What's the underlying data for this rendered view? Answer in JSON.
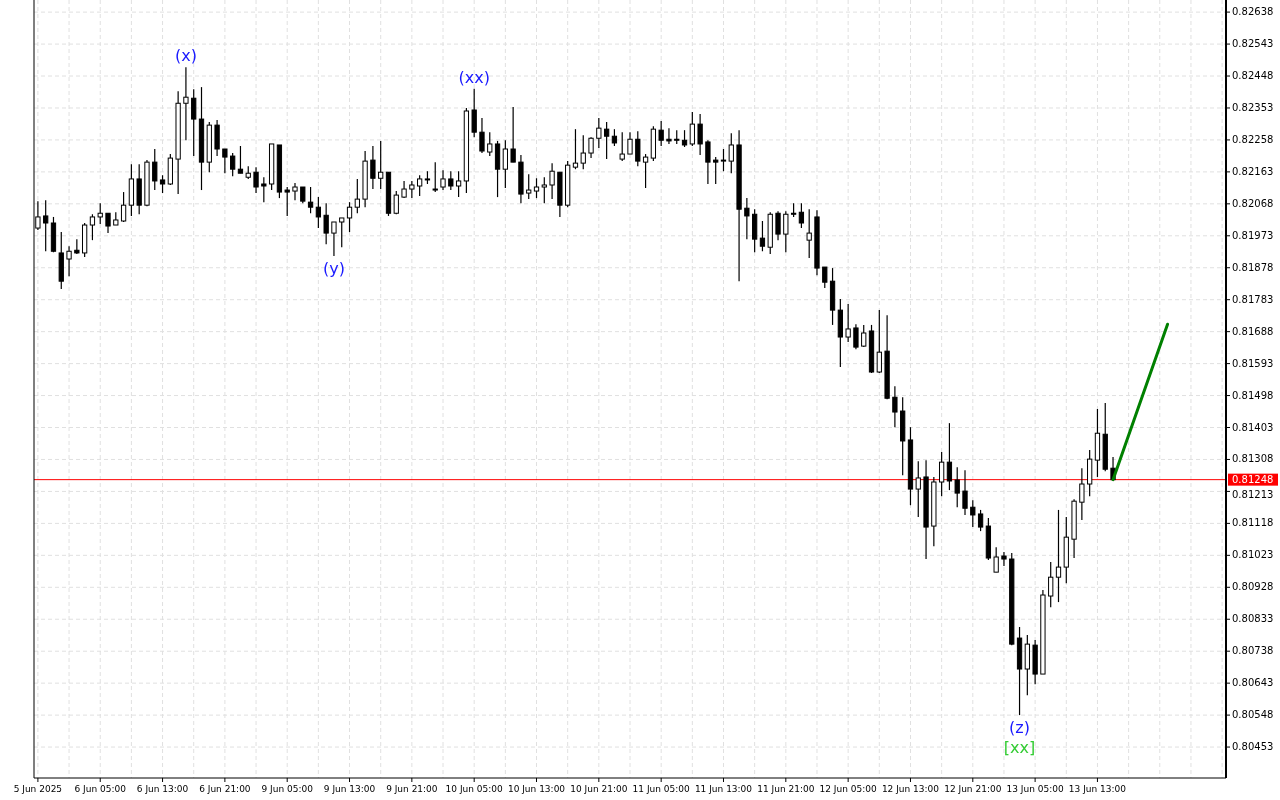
{
  "chart_data": {
    "type": "candlestick",
    "categories": [
      "5 Jun 2025",
      null,
      null,
      null,
      null,
      null,
      null,
      null,
      "6 Jun 05:00",
      null,
      null,
      null,
      null,
      null,
      null,
      null,
      "6 Jun 13:00",
      null,
      null,
      null,
      null,
      null,
      null,
      null,
      "6 Jun 21:00",
      null,
      null,
      null,
      null,
      null,
      null,
      null,
      "9 Jun 05:00",
      null,
      null,
      null,
      null,
      null,
      null,
      null,
      "9 Jun 13:00",
      null,
      null,
      null,
      null,
      null,
      null,
      null,
      "9 Jun 21:00",
      null,
      null,
      null,
      null,
      null,
      null,
      null,
      "10 Jun 05:00",
      null,
      null,
      null,
      null,
      null,
      null,
      null,
      "10 Jun 13:00",
      null,
      null,
      null,
      null,
      null,
      null,
      null,
      "10 Jun 21:00",
      null,
      null,
      null,
      null,
      null,
      null,
      null,
      "11 Jun 05:00",
      null,
      null,
      null,
      null,
      null,
      null,
      null,
      "11 Jun 13:00",
      null,
      null,
      null,
      null,
      null,
      null,
      null,
      "11 Jun 21:00",
      null,
      null,
      null,
      null,
      null,
      null,
      null,
      "12 Jun 05:00",
      null,
      null,
      null,
      null,
      null,
      null,
      null,
      "12 Jun 13:00",
      null,
      null,
      null,
      null,
      null,
      null,
      null,
      "12 Jun 21:00",
      null,
      null,
      null,
      null,
      null,
      null,
      null,
      "13 Jun 05:00",
      null,
      null,
      null,
      null,
      null,
      null,
      null,
      "13 Jun 13:00",
      null,
      null,
      null,
      null,
      null,
      null,
      null,
      null,
      null,
      null,
      null,
      null,
      null,
      null,
      null,
      null
    ],
    "ohlc": [
      [
        0.81996,
        0.82076,
        0.8199,
        0.82029
      ],
      [
        0.82032,
        0.82079,
        0.81927,
        0.82011
      ],
      [
        0.82011,
        0.82029,
        0.81924,
        0.81927
      ],
      [
        0.81922,
        0.81984,
        0.81815,
        0.81838
      ],
      [
        0.81904,
        0.81942,
        0.81853,
        0.81927
      ],
      [
        0.8193,
        0.81963,
        0.81919,
        0.81922
      ],
      [
        0.81922,
        0.82011,
        0.8191,
        0.82005
      ],
      [
        0.82005,
        0.82037,
        0.8196,
        0.82029
      ],
      [
        0.82029,
        0.8207,
        0.82008,
        0.8204
      ],
      [
        0.8204,
        0.8204,
        0.81981,
        0.82002
      ],
      [
        0.82005,
        0.82043,
        0.82005,
        0.8202
      ],
      [
        0.82017,
        0.82103,
        0.82014,
        0.82064
      ],
      [
        0.82064,
        0.82186,
        0.82032,
        0.82142
      ],
      [
        0.82142,
        0.82186,
        0.82037,
        0.82064
      ],
      [
        0.82064,
        0.82198,
        0.82061,
        0.82192
      ],
      [
        0.82192,
        0.82231,
        0.82109,
        0.82136
      ],
      [
        0.82139,
        0.82153,
        0.821,
        0.82127
      ],
      [
        0.82127,
        0.82216,
        0.82124,
        0.82204
      ],
      [
        0.82201,
        0.82403,
        0.82097,
        0.82367
      ],
      [
        0.82367,
        0.82474,
        0.82257,
        0.82385
      ],
      [
        0.82382,
        0.82409,
        0.8221,
        0.8232
      ],
      [
        0.8232,
        0.82415,
        0.82109,
        0.82192
      ],
      [
        0.82192,
        0.82311,
        0.82162,
        0.82302
      ],
      [
        0.82302,
        0.82317,
        0.8221,
        0.82231
      ],
      [
        0.82231,
        0.82231,
        0.82159,
        0.82207
      ],
      [
        0.8221,
        0.82219,
        0.8215,
        0.82171
      ],
      [
        0.82171,
        0.8224,
        0.82159,
        0.82159
      ],
      [
        0.82147,
        0.8218,
        0.82142,
        0.82159
      ],
      [
        0.82162,
        0.82177,
        0.821,
        0.82118
      ],
      [
        0.82127,
        0.82147,
        0.82073,
        0.82121
      ],
      [
        0.82127,
        0.82246,
        0.82109,
        0.82246
      ],
      [
        0.82243,
        0.82243,
        0.82085,
        0.82103
      ],
      [
        0.82109,
        0.82118,
        0.82032,
        0.82103
      ],
      [
        0.82106,
        0.8213,
        0.82079,
        0.82118
      ],
      [
        0.82118,
        0.82118,
        0.8207,
        0.82076
      ],
      [
        0.82073,
        0.82118,
        0.8204,
        0.82058
      ],
      [
        0.82058,
        0.82088,
        0.81996,
        0.82029
      ],
      [
        0.82034,
        0.8207,
        0.81948,
        0.81981
      ],
      [
        0.81981,
        0.82014,
        0.81913,
        0.82014
      ],
      [
        0.82014,
        0.82026,
        0.81939,
        0.82026
      ],
      [
        0.82026,
        0.82073,
        0.81984,
        0.82058
      ],
      [
        0.82058,
        0.82142,
        0.8204,
        0.82082
      ],
      [
        0.82082,
        0.82225,
        0.82058,
        0.82195
      ],
      [
        0.82198,
        0.8224,
        0.82112,
        0.82144
      ],
      [
        0.82144,
        0.82255,
        0.82112,
        0.82162
      ],
      [
        0.82162,
        0.82162,
        0.82032,
        0.8204
      ],
      [
        0.8204,
        0.82106,
        0.82037,
        0.82094
      ],
      [
        0.82088,
        0.82136,
        0.82085,
        0.82112
      ],
      [
        0.82112,
        0.82136,
        0.82085,
        0.82124
      ],
      [
        0.82121,
        0.82153,
        0.82091,
        0.82142
      ],
      [
        0.82142,
        0.82165,
        0.82127,
        0.82139
      ],
      [
        0.82112,
        0.82192,
        0.82103,
        0.82109
      ],
      [
        0.82118,
        0.82168,
        0.82109,
        0.82142
      ],
      [
        0.82142,
        0.82165,
        0.82109,
        0.82121
      ],
      [
        0.82121,
        0.82165,
        0.82088,
        0.82136
      ],
      [
        0.82136,
        0.82353,
        0.821,
        0.82344
      ],
      [
        0.82347,
        0.8241,
        0.82266,
        0.82281
      ],
      [
        0.82281,
        0.82323,
        0.82219,
        0.82225
      ],
      [
        0.82222,
        0.82281,
        0.8221,
        0.82246
      ],
      [
        0.82246,
        0.82255,
        0.82088,
        0.82171
      ],
      [
        0.82171,
        0.82257,
        0.82115,
        0.82231
      ],
      [
        0.82231,
        0.82356,
        0.82192,
        0.82192
      ],
      [
        0.82192,
        0.82213,
        0.8207,
        0.82097
      ],
      [
        0.821,
        0.82156,
        0.82082,
        0.82109
      ],
      [
        0.82106,
        0.82144,
        0.82085,
        0.82118
      ],
      [
        0.82118,
        0.82147,
        0.8207,
        0.82124
      ],
      [
        0.82124,
        0.82189,
        0.82082,
        0.82165
      ],
      [
        0.82162,
        0.82162,
        0.82029,
        0.82064
      ],
      [
        0.82064,
        0.82195,
        0.82058,
        0.82183
      ],
      [
        0.82177,
        0.8229,
        0.82171,
        0.82189
      ],
      [
        0.82189,
        0.82272,
        0.82171,
        0.82219
      ],
      [
        0.82219,
        0.82266,
        0.82204,
        0.82263
      ],
      [
        0.82263,
        0.82323,
        0.82234,
        0.82293
      ],
      [
        0.8229,
        0.82311,
        0.82201,
        0.82269
      ],
      [
        0.82269,
        0.8229,
        0.8224,
        0.82249
      ],
      [
        0.82201,
        0.82281,
        0.82195,
        0.82216
      ],
      [
        0.82216,
        0.82281,
        0.82216,
        0.8226
      ],
      [
        0.8226,
        0.82284,
        0.8218,
        0.82195
      ],
      [
        0.82192,
        0.82216,
        0.82115,
        0.82207
      ],
      [
        0.82204,
        0.82299,
        0.82195,
        0.8229
      ],
      [
        0.82287,
        0.82314,
        0.8224,
        0.82257
      ],
      [
        0.8226,
        0.82293,
        0.82246,
        0.82255
      ],
      [
        0.8226,
        0.82287,
        0.82246,
        0.82257
      ],
      [
        0.82257,
        0.82287,
        0.82237,
        0.82243
      ],
      [
        0.82246,
        0.82341,
        0.8224,
        0.82305
      ],
      [
        0.82305,
        0.82335,
        0.82213,
        0.82246
      ],
      [
        0.82252,
        0.82257,
        0.82127,
        0.82192
      ],
      [
        0.82198,
        0.82207,
        0.82127,
        0.82192
      ],
      [
        0.82195,
        0.82231,
        0.82165,
        0.82198
      ],
      [
        0.82195,
        0.82278,
        0.82159,
        0.82243
      ],
      [
        0.82243,
        0.82287,
        0.81838,
        0.82052
      ],
      [
        0.82055,
        0.82085,
        0.81963,
        0.82032
      ],
      [
        0.82037,
        0.82052,
        0.81924,
        0.81963
      ],
      [
        0.81966,
        0.82017,
        0.81927,
        0.81942
      ],
      [
        0.81939,
        0.82043,
        0.81919,
        0.82037
      ],
      [
        0.8204,
        0.82046,
        0.8196,
        0.81978
      ],
      [
        0.81978,
        0.82046,
        0.81924,
        0.82037
      ],
      [
        0.8204,
        0.8207,
        0.82029,
        0.82037
      ],
      [
        0.82043,
        0.8207,
        0.81996,
        0.82011
      ],
      [
        0.8196,
        0.82052,
        0.81907,
        0.81981
      ],
      [
        0.82029,
        0.82049,
        0.81856,
        0.81877
      ],
      [
        0.8188,
        0.8188,
        0.81818,
        0.81835
      ],
      [
        0.81838,
        0.81877,
        0.81708,
        0.81752
      ],
      [
        0.81752,
        0.81785,
        0.81583,
        0.81672
      ],
      [
        0.81672,
        0.8177,
        0.81657,
        0.81696
      ],
      [
        0.81699,
        0.8171,
        0.81636,
        0.81642
      ],
      [
        0.81645,
        0.81708,
        0.81642,
        0.81684
      ],
      [
        0.8169,
        0.81708,
        0.81565,
        0.81568
      ],
      [
        0.81568,
        0.81752,
        0.81565,
        0.81627
      ],
      [
        0.8163,
        0.81737,
        0.81487,
        0.8149
      ],
      [
        0.81493,
        0.81526,
        0.81404,
        0.81449
      ],
      [
        0.81452,
        0.81493,
        0.81261,
        0.81363
      ],
      [
        0.81366,
        0.81404,
        0.81172,
        0.8122
      ],
      [
        0.8122,
        0.81303,
        0.81137,
        0.81253
      ],
      [
        0.81256,
        0.81306,
        0.81012,
        0.81107
      ],
      [
        0.8111,
        0.81256,
        0.8105,
        0.81241
      ],
      [
        0.81241,
        0.8133,
        0.81199,
        0.813
      ],
      [
        0.813,
        0.81416,
        0.81217,
        0.81244
      ],
      [
        0.81247,
        0.81285,
        0.81166,
        0.81208
      ],
      [
        0.81214,
        0.81276,
        0.81143,
        0.81163
      ],
      [
        0.81166,
        0.81187,
        0.81107,
        0.81143
      ],
      [
        0.81146,
        0.81158,
        0.81095,
        0.81107
      ],
      [
        0.8111,
        0.81134,
        0.81009,
        0.81015
      ],
      [
        0.80973,
        0.81047,
        0.80973,
        0.81018
      ],
      [
        0.81021,
        0.81033,
        0.80991,
        0.81012
      ],
      [
        0.81012,
        0.8103,
        0.80756,
        0.80759
      ],
      [
        0.80777,
        0.8081,
        0.80548,
        0.80685
      ],
      [
        0.80685,
        0.80786,
        0.80607,
        0.80759
      ],
      [
        0.80756,
        0.80771,
        0.8064,
        0.8067
      ],
      [
        0.8067,
        0.8092,
        0.8067,
        0.80905
      ],
      [
        0.80902,
        0.81003,
        0.80869,
        0.80958
      ],
      [
        0.80958,
        0.81158,
        0.80884,
        0.80988
      ],
      [
        0.80988,
        0.81137,
        0.8094,
        0.81077
      ],
      [
        0.81071,
        0.8119,
        0.81015,
        0.81184
      ],
      [
        0.81181,
        0.81282,
        0.81128,
        0.81235
      ],
      [
        0.81235,
        0.81336,
        0.81199,
        0.81309
      ],
      [
        0.81306,
        0.81458,
        0.81256,
        0.81386
      ],
      [
        0.81383,
        0.81476,
        0.81273,
        0.81279
      ],
      [
        0.81282,
        0.81315,
        0.81248,
        0.81248
      ],
      null,
      null,
      null,
      null,
      null,
      null,
      null,
      null,
      null,
      null,
      null,
      null,
      null,
      null
    ],
    "series": [
      {
        "type": "line",
        "color": "#008000",
        "values": [
          null,
          null,
          null,
          null,
          null,
          null,
          null,
          null,
          null,
          null,
          null,
          null,
          null,
          null,
          null,
          null,
          null,
          null,
          null,
          null,
          null,
          null,
          null,
          null,
          null,
          null,
          null,
          null,
          null,
          null,
          null,
          null,
          null,
          null,
          null,
          null,
          null,
          null,
          null,
          null,
          null,
          null,
          null,
          null,
          null,
          null,
          null,
          null,
          null,
          null,
          null,
          null,
          null,
          null,
          null,
          null,
          null,
          null,
          null,
          null,
          null,
          null,
          null,
          null,
          null,
          null,
          null,
          null,
          null,
          null,
          null,
          null,
          null,
          null,
          null,
          null,
          null,
          null,
          null,
          null,
          null,
          null,
          null,
          null,
          null,
          null,
          null,
          null,
          null,
          null,
          null,
          null,
          null,
          null,
          null,
          null,
          null,
          null,
          null,
          null,
          null,
          null,
          null,
          null,
          null,
          null,
          null,
          null,
          null,
          null,
          null,
          null,
          null,
          null,
          null,
          null,
          null,
          null,
          null,
          null,
          null,
          null,
          null,
          null,
          null,
          null,
          null,
          null,
          null,
          null,
          null,
          null,
          null,
          null,
          null,
          null,
          null,
          null,
          0.81248,
          null,
          null,
          null,
          null,
          null,
          null,
          0.8171,
          null,
          null,
          null,
          null,
          null,
          null,
          null
        ]
      }
    ],
    "ylim": [
      0.80361,
      0.82674
    ],
    "yticks": [
      0.80453,
      0.80548,
      0.80643,
      0.80738,
      0.80833,
      0.80928,
      0.81023,
      0.81118,
      0.81213,
      0.81308,
      0.81403,
      0.81498,
      0.81593,
      0.81688,
      0.81783,
      0.81878,
      0.81973,
      0.82068,
      0.82163,
      0.82258,
      0.82353,
      0.82448,
      0.82543,
      0.82638
    ],
    "grid": true,
    "ref_lines": [
      {
        "axis": "y",
        "value": 0.81248,
        "label": "0.81248",
        "color": "#ff0000"
      }
    ],
    "annotations": [
      {
        "text": "(x)",
        "y": 0.82474
      },
      {
        "text": "(xx)",
        "y": 0.8241
      },
      {
        "text": "(y)",
        "y": 0.81913
      },
      {
        "text": "(z)",
        "y": 0.80548
      },
      {
        "text": "[xx]",
        "y": 0.80548
      }
    ]
  }
}
